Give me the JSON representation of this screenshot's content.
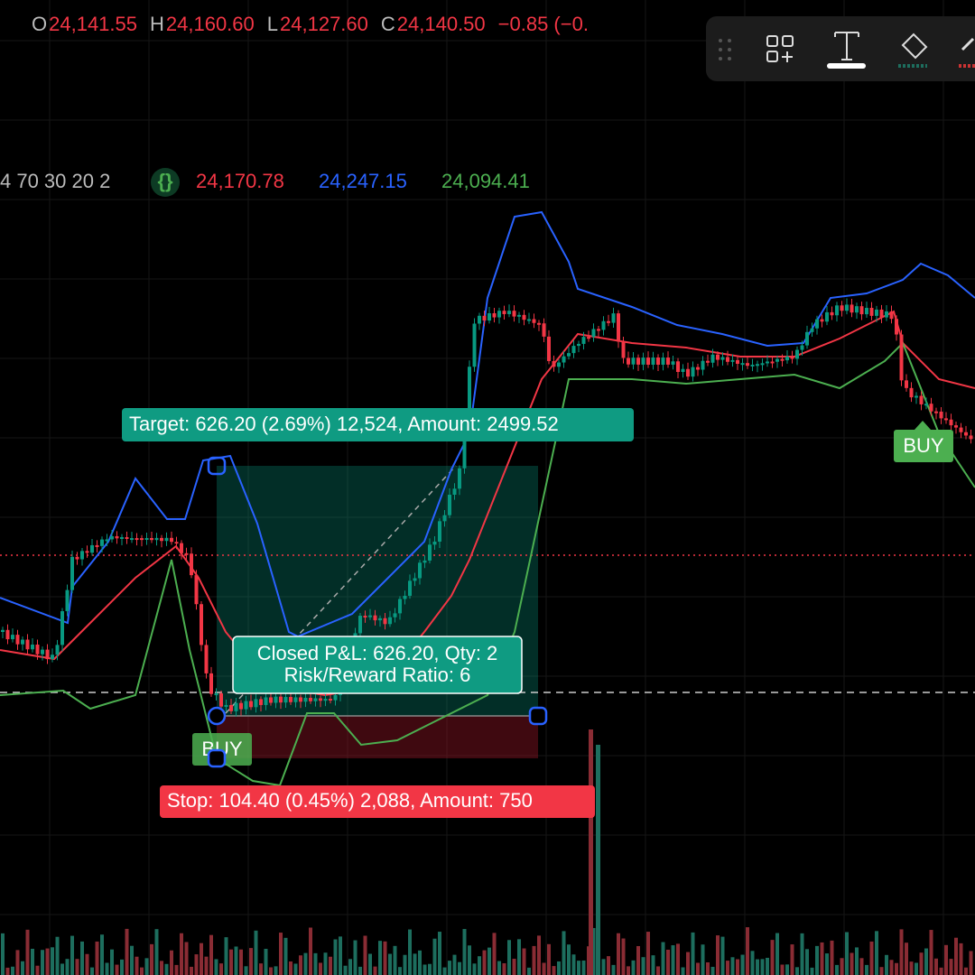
{
  "header": {
    "ohlc": [
      {
        "key": "O",
        "value": "24,141.55"
      },
      {
        "key": "H",
        "value": "24,160.60"
      },
      {
        "key": "L",
        "value": "24,127.60"
      },
      {
        "key": "C",
        "value": "24,140.50"
      }
    ],
    "change": "−0.85 (−0."
  },
  "indicator": {
    "params": "4 70 30 20 2",
    "values": [
      "24,170.78",
      "24,247.15",
      "24,094.41"
    ]
  },
  "position": {
    "target": "Target: 626.20 (2.69%) 12,524, Amount: 2499.52",
    "pnl": "Closed P&L: 626.20, Qty: 2",
    "ratio": "Risk/Reward Ratio: 6",
    "stop": "Stop: 104.40 (0.45%) 2,088, Amount: 750"
  },
  "signals": [
    "BUY",
    "BUY"
  ]
}
